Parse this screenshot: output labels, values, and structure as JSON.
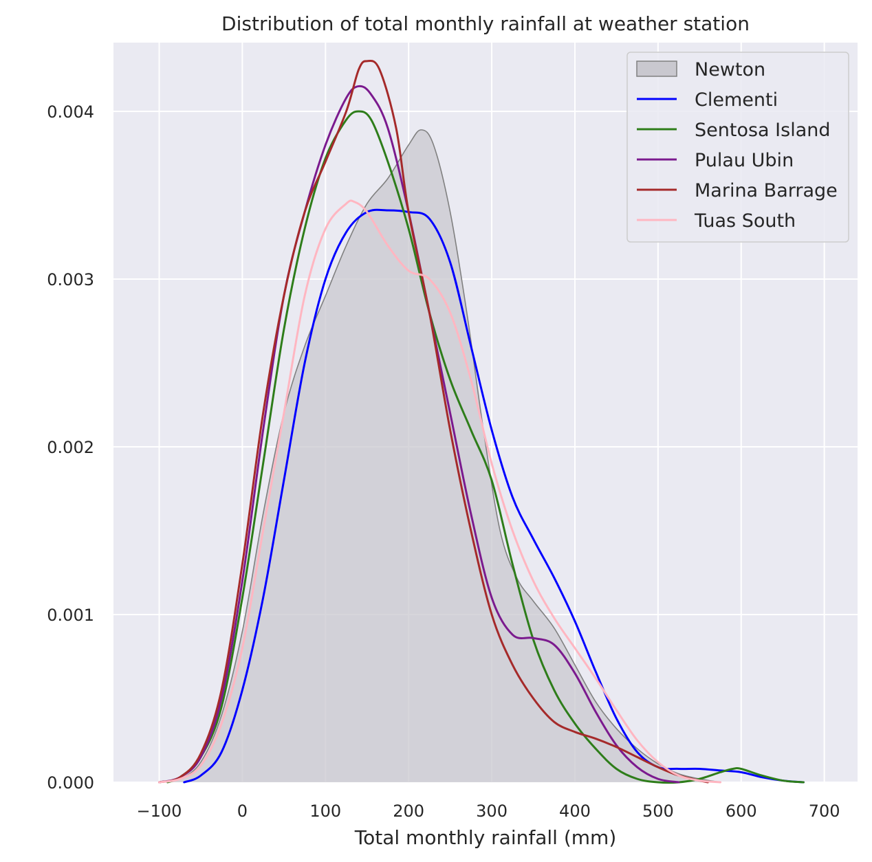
{
  "chart_data": {
    "type": "line",
    "title": "Distribution of total monthly rainfall at weather station",
    "xlabel": "Total monthly rainfall (mm)",
    "ylabel": "",
    "xlim": [
      -155,
      740
    ],
    "ylim": [
      0,
      0.00441
    ],
    "xticks": [
      -100,
      0,
      100,
      200,
      300,
      400,
      500,
      600,
      700
    ],
    "xtick_labels": [
      "−100",
      "0",
      "100",
      "200",
      "300",
      "400",
      "500",
      "600",
      "700"
    ],
    "yticks": [
      0,
      0.001,
      0.002,
      0.003,
      0.004
    ],
    "ytick_labels": [
      "0.000",
      "0.001",
      "0.002",
      "0.003",
      "0.004"
    ],
    "grid": true,
    "legend_position": "top-right",
    "series": [
      {
        "name": "Newton",
        "style": "filled",
        "color": "#808080",
        "fill": "#c9c8cf",
        "points": [
          [
            -100,
            0
          ],
          [
            -75,
            2e-05
          ],
          [
            -50,
            0.00012
          ],
          [
            -25,
            0.0004
          ],
          [
            0,
            0.0009
          ],
          [
            25,
            0.0016
          ],
          [
            50,
            0.0022
          ],
          [
            75,
            0.0026
          ],
          [
            100,
            0.0029
          ],
          [
            125,
            0.0032
          ],
          [
            150,
            0.00345
          ],
          [
            175,
            0.0036
          ],
          [
            200,
            0.0038
          ],
          [
            215,
            0.00389
          ],
          [
            230,
            0.0038
          ],
          [
            250,
            0.0034
          ],
          [
            270,
            0.0028
          ],
          [
            290,
            0.0021
          ],
          [
            310,
            0.0015
          ],
          [
            330,
            0.00122
          ],
          [
            350,
            0.00108
          ],
          [
            375,
            0.00092
          ],
          [
            400,
            0.0007
          ],
          [
            425,
            0.00048
          ],
          [
            450,
            0.00032
          ],
          [
            475,
            0.0002
          ],
          [
            500,
            0.00011
          ],
          [
            525,
            5e-05
          ],
          [
            550,
            2e-05
          ],
          [
            575,
            0
          ]
        ]
      },
      {
        "name": "Clementi",
        "style": "line",
        "color": "#0000ff",
        "points": [
          [
            -70,
            0
          ],
          [
            -50,
            4e-05
          ],
          [
            -25,
            0.00018
          ],
          [
            0,
            0.00055
          ],
          [
            25,
            0.0011
          ],
          [
            50,
            0.0018
          ],
          [
            75,
            0.0025
          ],
          [
            100,
            0.003
          ],
          [
            125,
            0.00328
          ],
          [
            150,
            0.0034
          ],
          [
            175,
            0.00341
          ],
          [
            200,
            0.0034
          ],
          [
            225,
            0.00336
          ],
          [
            250,
            0.0031
          ],
          [
            275,
            0.0026
          ],
          [
            300,
            0.0021
          ],
          [
            325,
            0.0017
          ],
          [
            350,
            0.00145
          ],
          [
            375,
            0.00122
          ],
          [
            400,
            0.00096
          ],
          [
            425,
            0.00066
          ],
          [
            450,
            0.00038
          ],
          [
            475,
            0.00018
          ],
          [
            500,
            9e-05
          ],
          [
            525,
            8e-05
          ],
          [
            550,
            8e-05
          ],
          [
            575,
            7e-05
          ],
          [
            600,
            6e-05
          ],
          [
            625,
            3e-05
          ],
          [
            650,
            1e-05
          ],
          [
            675,
            0
          ]
        ]
      },
      {
        "name": "Sentosa Island",
        "style": "line",
        "color": "#2e7d1a",
        "points": [
          [
            -90,
            0
          ],
          [
            -75,
            3e-05
          ],
          [
            -50,
            0.00015
          ],
          [
            -25,
            0.00045
          ],
          [
            0,
            0.0011
          ],
          [
            25,
            0.0019
          ],
          [
            50,
            0.0027
          ],
          [
            75,
            0.0033
          ],
          [
            100,
            0.00372
          ],
          [
            125,
            0.00395
          ],
          [
            140,
            0.004
          ],
          [
            155,
            0.00395
          ],
          [
            175,
            0.0037
          ],
          [
            200,
            0.0033
          ],
          [
            225,
            0.0028
          ],
          [
            250,
            0.0024
          ],
          [
            275,
            0.0021
          ],
          [
            300,
            0.0018
          ],
          [
            325,
            0.0013
          ],
          [
            350,
            0.00085
          ],
          [
            375,
            0.00055
          ],
          [
            400,
            0.00035
          ],
          [
            425,
            0.0002
          ],
          [
            450,
            8e-05
          ],
          [
            475,
            2e-05
          ],
          [
            500,
            0
          ],
          [
            525,
            0
          ],
          [
            550,
            2e-05
          ],
          [
            575,
            6e-05
          ],
          [
            590,
            8e-05
          ],
          [
            600,
            8e-05
          ],
          [
            625,
            4e-05
          ],
          [
            650,
            1e-05
          ],
          [
            675,
            0
          ]
        ]
      },
      {
        "name": "Pulau Ubin",
        "style": "line",
        "color": "#7b1a8e",
        "points": [
          [
            -100,
            0
          ],
          [
            -75,
            3e-05
          ],
          [
            -50,
            0.00015
          ],
          [
            -25,
            0.0005
          ],
          [
            0,
            0.0012
          ],
          [
            25,
            0.0021
          ],
          [
            50,
            0.0029
          ],
          [
            75,
            0.0034
          ],
          [
            100,
            0.0038
          ],
          [
            125,
            0.00408
          ],
          [
            140,
            0.00415
          ],
          [
            155,
            0.0041
          ],
          [
            175,
            0.0039
          ],
          [
            200,
            0.0034
          ],
          [
            225,
            0.0028
          ],
          [
            250,
            0.0022
          ],
          [
            275,
            0.0016
          ],
          [
            300,
            0.0011
          ],
          [
            325,
            0.00088
          ],
          [
            350,
            0.00086
          ],
          [
            375,
            0.00082
          ],
          [
            400,
            0.00065
          ],
          [
            425,
            0.00042
          ],
          [
            450,
            0.00022
          ],
          [
            475,
            9e-05
          ],
          [
            500,
            2e-05
          ],
          [
            525,
            0
          ]
        ]
      },
      {
        "name": "Marina Barrage",
        "style": "line",
        "color": "#a52a2a",
        "points": [
          [
            -100,
            0
          ],
          [
            -75,
            3e-05
          ],
          [
            -50,
            0.00017
          ],
          [
            -25,
            0.00055
          ],
          [
            0,
            0.0013
          ],
          [
            25,
            0.0022
          ],
          [
            50,
            0.0029
          ],
          [
            75,
            0.0034
          ],
          [
            100,
            0.0037
          ],
          [
            125,
            0.004
          ],
          [
            140,
            0.00425
          ],
          [
            150,
            0.0043
          ],
          [
            165,
            0.00425
          ],
          [
            185,
            0.0039
          ],
          [
            200,
            0.0034
          ],
          [
            225,
            0.0028
          ],
          [
            250,
            0.0021
          ],
          [
            275,
            0.0015
          ],
          [
            300,
            0.001
          ],
          [
            325,
            0.0007
          ],
          [
            350,
            0.0005
          ],
          [
            375,
            0.00036
          ],
          [
            400,
            0.0003
          ],
          [
            425,
            0.00026
          ],
          [
            450,
            0.00021
          ],
          [
            475,
            0.00015
          ],
          [
            500,
            9e-05
          ],
          [
            525,
            4e-05
          ],
          [
            550,
            1e-05
          ],
          [
            560,
            0
          ]
        ]
      },
      {
        "name": "Tuas South",
        "style": "line",
        "color": "#ffb6c1",
        "points": [
          [
            -100,
            0
          ],
          [
            -75,
            2e-05
          ],
          [
            -50,
            0.0001
          ],
          [
            -25,
            0.00035
          ],
          [
            0,
            0.0008
          ],
          [
            25,
            0.0015
          ],
          [
            50,
            0.0022
          ],
          [
            75,
            0.0029
          ],
          [
            100,
            0.0033
          ],
          [
            125,
            0.00345
          ],
          [
            135,
            0.00346
          ],
          [
            150,
            0.0034
          ],
          [
            175,
            0.0032
          ],
          [
            200,
            0.00305
          ],
          [
            225,
            0.003
          ],
          [
            250,
            0.0028
          ],
          [
            275,
            0.0024
          ],
          [
            300,
            0.0019
          ],
          [
            325,
            0.0015
          ],
          [
            350,
            0.0012
          ],
          [
            375,
            0.00098
          ],
          [
            400,
            0.0008
          ],
          [
            425,
            0.00062
          ],
          [
            450,
            0.00043
          ],
          [
            475,
            0.00025
          ],
          [
            500,
            0.00012
          ],
          [
            525,
            4e-05
          ],
          [
            550,
            1e-05
          ],
          [
            575,
            0
          ]
        ]
      }
    ]
  }
}
